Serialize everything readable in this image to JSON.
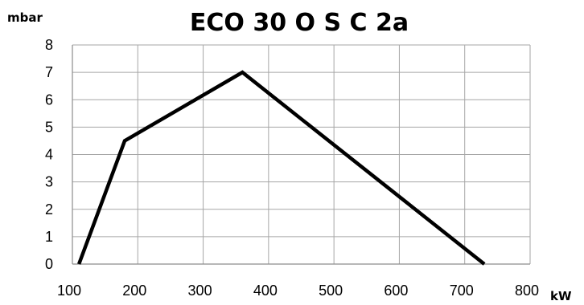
{
  "chart_data": {
    "type": "line",
    "title": "ECO 30 O S C 2a",
    "ylabel": "mbar",
    "xlabel": "kW",
    "xlim": [
      100,
      800
    ],
    "ylim": [
      0,
      8
    ],
    "x_ticks": [
      "100",
      "200",
      "300",
      "400",
      "500",
      "600",
      "700",
      "800"
    ],
    "y_ticks": [
      "0",
      "1",
      "2",
      "3",
      "4",
      "5",
      "6",
      "7",
      "8"
    ],
    "grid": true,
    "legend": "none",
    "series": [
      {
        "x": [
          110,
          180,
          360,
          730
        ],
        "y": [
          0,
          4.5,
          7,
          0
        ],
        "color": "#000000"
      }
    ]
  }
}
